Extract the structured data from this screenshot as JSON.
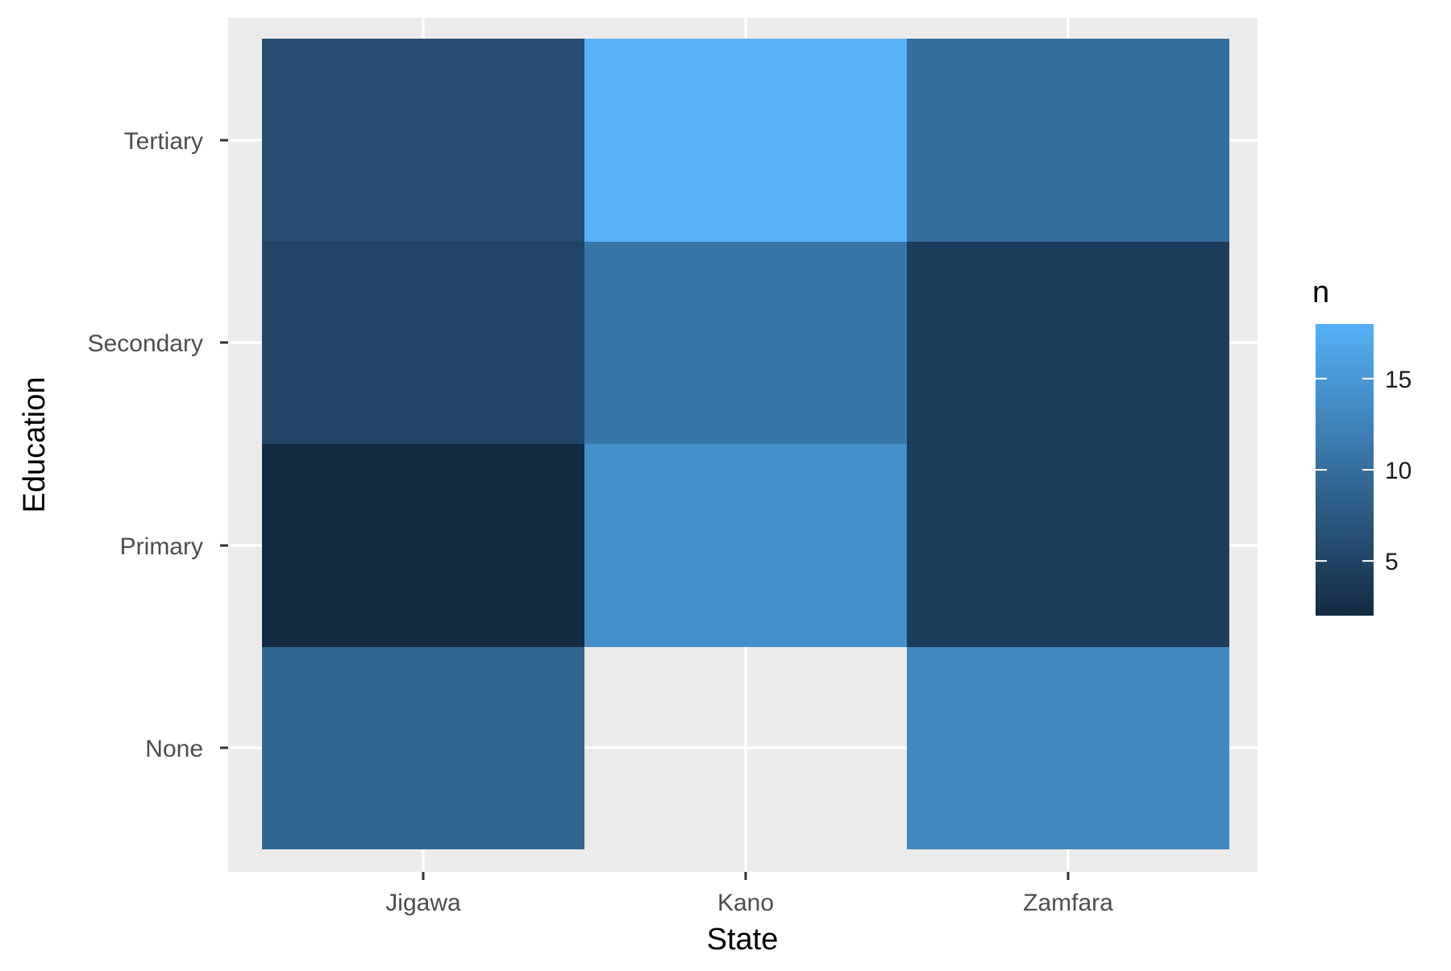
{
  "chart_data": {
    "type": "heatmap",
    "x_categories": [
      "Jigawa",
      "Kano",
      "Zamfara"
    ],
    "y_categories": [
      "None",
      "Primary",
      "Secondary",
      "Tertiary"
    ],
    "cells": [
      {
        "x": "Jigawa",
        "y": "None",
        "n": 9
      },
      {
        "x": "Jigawa",
        "y": "Primary",
        "n": 2
      },
      {
        "x": "Jigawa",
        "y": "Secondary",
        "n": 5
      },
      {
        "x": "Jigawa",
        "y": "Tertiary",
        "n": 6
      },
      {
        "x": "Kano",
        "y": "Primary",
        "n": 14
      },
      {
        "x": "Kano",
        "y": "Secondary",
        "n": 11
      },
      {
        "x": "Kano",
        "y": "Tertiary",
        "n": 18
      },
      {
        "x": "Zamfara",
        "y": "None",
        "n": 13
      },
      {
        "x": "Zamfara",
        "y": "Primary",
        "n": 4
      },
      {
        "x": "Zamfara",
        "y": "Secondary",
        "n": 4
      },
      {
        "x": "Zamfara",
        "y": "Tertiary",
        "n": 10
      }
    ],
    "xlabel": "State",
    "ylabel": "Education",
    "legend": {
      "title": "n",
      "range": [
        2,
        18
      ],
      "ticks": [
        5,
        10,
        15
      ],
      "low_color": "#132B43",
      "high_color": "#56B1F7",
      "placement": "right"
    },
    "panel_background": "#EBEBEB",
    "grid": true
  }
}
